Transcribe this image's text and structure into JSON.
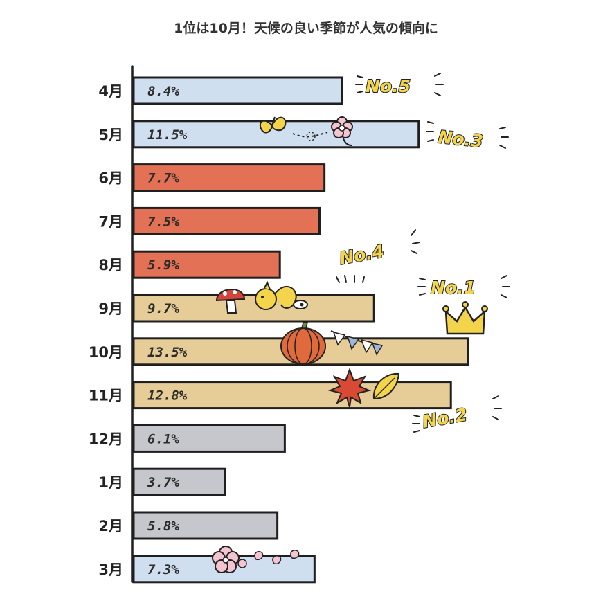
{
  "title": "1位は10月！天候の良い季節が人気の傾向に",
  "colors": {
    "spring": "#cfdff0",
    "summer": "#e27156",
    "autumn": "#e6cc97",
    "winter": "#c6c7cd",
    "outline": "#1f1f1f",
    "rank_fill": "#f3d44b"
  },
  "chart_data": {
    "type": "bar",
    "orientation": "horizontal",
    "title": "1位は10月！天候の良い季節が人気の傾向に",
    "xlim": [
      0,
      15
    ],
    "categories": [
      "4月",
      "5月",
      "6月",
      "7月",
      "8月",
      "9月",
      "10月",
      "11月",
      "12月",
      "1月",
      "2月",
      "3月"
    ],
    "values": [
      8.4,
      11.5,
      7.7,
      7.5,
      5.9,
      9.7,
      13.5,
      12.8,
      6.1,
      3.7,
      5.8,
      7.3
    ],
    "value_labels": [
      "8.4%",
      "11.5%",
      "7.7%",
      "7.5%",
      "5.9%",
      "9.7%",
      "13.5%",
      "12.8%",
      "6.1%",
      "3.7%",
      "5.8%",
      "7.3%"
    ],
    "seasons": [
      "spring",
      "spring",
      "summer",
      "summer",
      "summer",
      "autumn",
      "autumn",
      "autumn",
      "winter",
      "winter",
      "winter",
      "spring"
    ],
    "annotations": [
      {
        "text": "No.5",
        "category": "4月"
      },
      {
        "text": "No.3",
        "category": "5月"
      },
      {
        "text": "No.4",
        "category": "9月"
      },
      {
        "text": "No.1",
        "category": "10月"
      },
      {
        "text": "No.2",
        "category": "11月"
      }
    ],
    "decorations": {
      "5月": [
        "butterfly-icon",
        "flower-icon"
      ],
      "9月": [
        "mushroom-icon",
        "squirrel-icon"
      ],
      "10月": [
        "pumpkin-icon",
        "bunting-icon",
        "crown-icon"
      ],
      "11月": [
        "maple-leaf-icon",
        "leaf-icon"
      ],
      "3月": [
        "cherry-blossom-icon",
        "petal-icon"
      ]
    }
  }
}
